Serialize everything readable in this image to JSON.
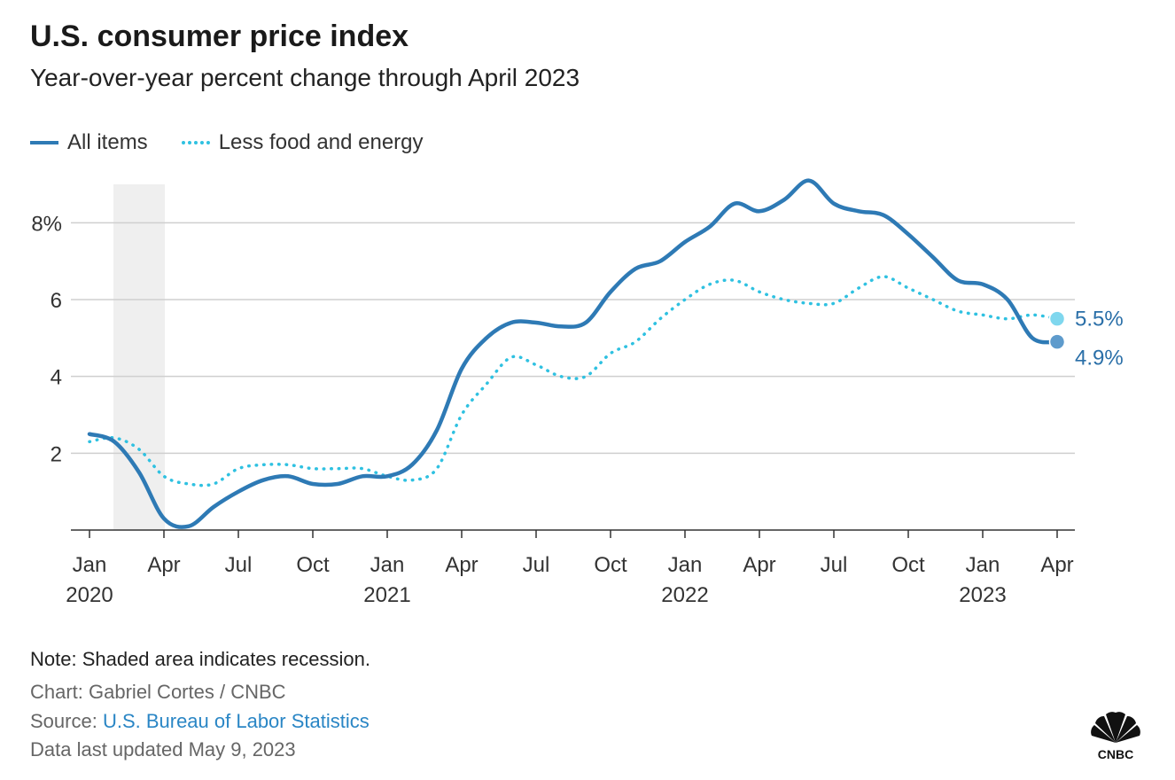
{
  "header": {
    "title": "U.S. consumer price index",
    "subtitle": "Year-over-year percent change through April 2023"
  },
  "legend": {
    "items": [
      {
        "label": "All items",
        "style": "solid",
        "color": "#2e7ab5"
      },
      {
        "label": "Less food and energy",
        "style": "dotted",
        "color": "#2fc1e1"
      }
    ]
  },
  "footer": {
    "note": "Note: Shaded area indicates recession.",
    "credit": "Chart: Gabriel Cortes / CNBC",
    "source_prefix": "Source: ",
    "source_link": "U.S. Bureau of Labor Statistics",
    "updated": "Data last updated May 9, 2023"
  },
  "logo": {
    "text": "CNBC",
    "icon": "peacock-icon"
  },
  "chart_data": {
    "type": "line",
    "x": [
      "2020-01",
      "2020-02",
      "2020-03",
      "2020-04",
      "2020-05",
      "2020-06",
      "2020-07",
      "2020-08",
      "2020-09",
      "2020-10",
      "2020-11",
      "2020-12",
      "2021-01",
      "2021-02",
      "2021-03",
      "2021-04",
      "2021-05",
      "2021-06",
      "2021-07",
      "2021-08",
      "2021-09",
      "2021-10",
      "2021-11",
      "2021-12",
      "2022-01",
      "2022-02",
      "2022-03",
      "2022-04",
      "2022-05",
      "2022-06",
      "2022-07",
      "2022-08",
      "2022-09",
      "2022-10",
      "2022-11",
      "2022-12",
      "2023-01",
      "2023-02",
      "2023-03",
      "2023-04"
    ],
    "series": [
      {
        "name": "All items",
        "color": "#2e7ab5",
        "style": "solid",
        "values": [
          2.5,
          2.3,
          1.5,
          0.3,
          0.1,
          0.6,
          1.0,
          1.3,
          1.4,
          1.2,
          1.2,
          1.4,
          1.4,
          1.7,
          2.6,
          4.2,
          5.0,
          5.4,
          5.4,
          5.3,
          5.4,
          6.2,
          6.8,
          7.0,
          7.5,
          7.9,
          8.5,
          8.3,
          8.6,
          9.1,
          8.5,
          8.3,
          8.2,
          7.7,
          7.1,
          6.5,
          6.4,
          6.0,
          5.0,
          4.9
        ]
      },
      {
        "name": "Less food and energy",
        "color": "#2fc1e1",
        "style": "dotted",
        "values": [
          2.3,
          2.4,
          2.1,
          1.4,
          1.2,
          1.2,
          1.6,
          1.7,
          1.7,
          1.6,
          1.6,
          1.6,
          1.4,
          1.3,
          1.6,
          3.0,
          3.8,
          4.5,
          4.3,
          4.0,
          4.0,
          4.6,
          4.9,
          5.5,
          6.0,
          6.4,
          6.5,
          6.2,
          6.0,
          5.9,
          5.9,
          6.3,
          6.6,
          6.3,
          6.0,
          5.7,
          5.6,
          5.5,
          5.6,
          5.5
        ]
      }
    ],
    "end_labels": [
      "4.9%",
      "5.5%"
    ],
    "y_ticks": [
      2,
      4,
      6,
      8
    ],
    "y_tick_labels": [
      "2",
      "4",
      "6",
      "8%"
    ],
    "ylim": [
      0,
      9.0
    ],
    "x_ticks": [
      {
        "month": "Jan",
        "year": "2020",
        "index": 0
      },
      {
        "month": "Apr",
        "year": "",
        "index": 3
      },
      {
        "month": "Jul",
        "year": "",
        "index": 6
      },
      {
        "month": "Oct",
        "year": "",
        "index": 9
      },
      {
        "month": "Jan",
        "year": "2021",
        "index": 12
      },
      {
        "month": "Apr",
        "year": "",
        "index": 15
      },
      {
        "month": "Jul",
        "year": "",
        "index": 18
      },
      {
        "month": "Oct",
        "year": "",
        "index": 21
      },
      {
        "month": "Jan",
        "year": "2022",
        "index": 24
      },
      {
        "month": "Apr",
        "year": "",
        "index": 27
      },
      {
        "month": "Jul",
        "year": "",
        "index": 30
      },
      {
        "month": "Oct",
        "year": "",
        "index": 33
      },
      {
        "month": "Jan",
        "year": "2023",
        "index": 36
      },
      {
        "month": "Apr",
        "year": "",
        "index": 39
      }
    ],
    "recession": {
      "start": "2020-02",
      "end": "2020-04"
    },
    "grid": true
  }
}
